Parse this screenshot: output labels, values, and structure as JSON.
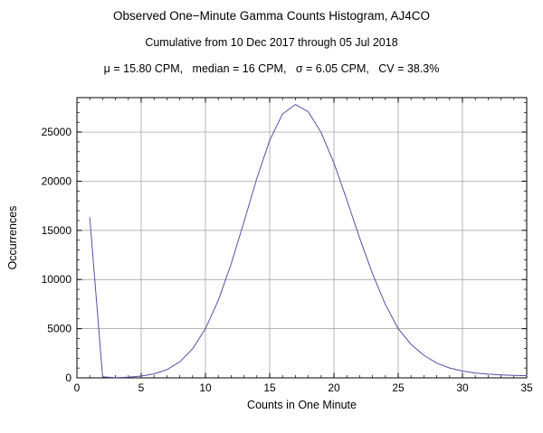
{
  "header": {
    "title": "Observed One−Minute Gamma Counts Histogram, AJ4CO",
    "subtitle": "Cumulative from 10 Dec 2017 through 05 Jul 2018",
    "stats": "μ = 15.80 CPM,   median = 16 CPM,   σ = 6.05 CPM,   CV = 38.3%"
  },
  "chart_data": {
    "type": "line",
    "title": "Observed One−Minute Gamma Counts Histogram, AJ4CO",
    "subtitle": "Cumulative from 10 Dec 2017 through 05 Jul 2018",
    "annotation": "μ = 15.80 CPM, median = 16 CPM, σ = 6.05 CPM, CV = 38.3%",
    "xlabel": "Counts in One Minute",
    "ylabel": "Occurrences",
    "xlim": [
      0,
      35
    ],
    "ylim": [
      0,
      28500
    ],
    "xticks": [
      0,
      5,
      10,
      15,
      20,
      25,
      30,
      35
    ],
    "yticks": [
      0,
      5000,
      10000,
      15000,
      20000,
      25000
    ],
    "x_minor_step": 1,
    "y_minor_step": 1000,
    "grid": true,
    "grid_color": "#999999",
    "frame_color": "#000000",
    "line_color": "#5053a5",
    "x": [
      1,
      2,
      3,
      4,
      5,
      6,
      7,
      8,
      9,
      10,
      11,
      12,
      13,
      14,
      15,
      16,
      17,
      18,
      19,
      20,
      21,
      22,
      23,
      24,
      25,
      26,
      27,
      28,
      29,
      30,
      31,
      32,
      33,
      34,
      35
    ],
    "y": [
      16300,
      100,
      25,
      75,
      180,
      400,
      840,
      1630,
      2950,
      5000,
      7880,
      11580,
      15870,
      20280,
      24160,
      26840,
      27800,
      27070,
      24960,
      21840,
      18110,
      14220,
      10590,
      7470,
      5000,
      3400,
      2300,
      1500,
      1000,
      700,
      500,
      380,
      300,
      250,
      220
    ]
  }
}
